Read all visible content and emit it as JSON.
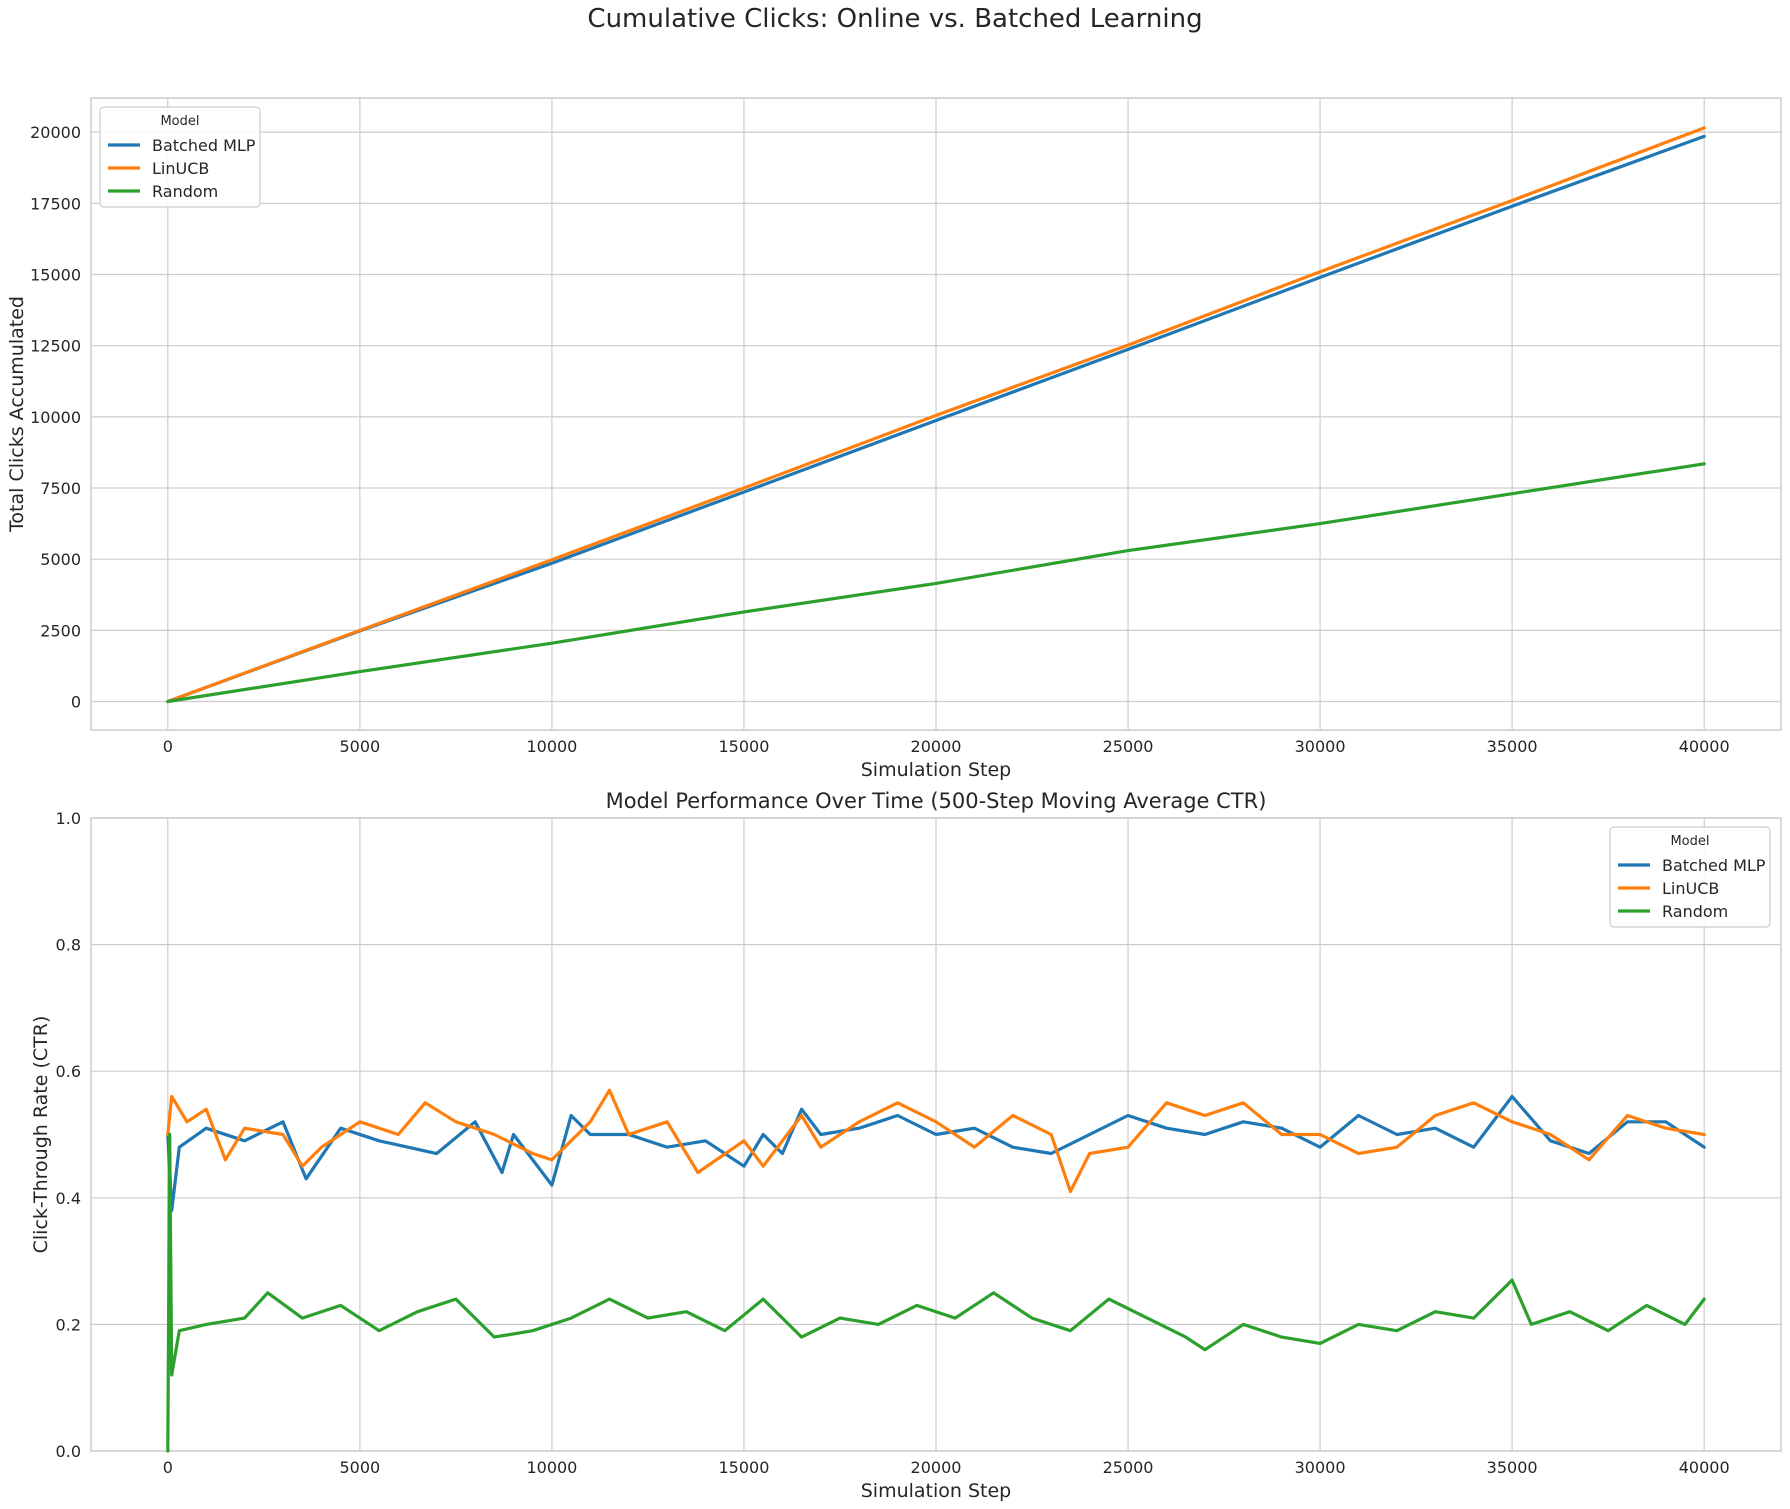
{
  "figure_title": "Cumulative Clicks: Online vs. Batched Learning",
  "colors": {
    "Batched MLP": "#1f77b4",
    "LinUCB": "#ff7f0e",
    "Random": "#2ca02c",
    "grid": "#cccccc",
    "axes_edge": "#cccccc"
  },
  "chart_data": [
    {
      "type": "line",
      "title": "",
      "xlabel": "Simulation Step",
      "ylabel": "Total Clicks Accumulated",
      "xlim": [
        -2000,
        42000
      ],
      "ylim": [
        -1000,
        21200
      ],
      "xticks": [
        0,
        5000,
        10000,
        15000,
        20000,
        25000,
        30000,
        35000,
        40000
      ],
      "yticks": [
        0,
        2500,
        5000,
        7500,
        10000,
        12500,
        15000,
        17500,
        20000
      ],
      "grid": true,
      "legend": {
        "title": "Model",
        "placement": "top-left",
        "entries": [
          "Batched MLP",
          "LinUCB",
          "Random"
        ]
      },
      "series": [
        {
          "name": "Batched MLP",
          "x": [
            0,
            5000,
            10000,
            15000,
            20000,
            25000,
            30000,
            35000,
            40000
          ],
          "values": [
            0,
            2480,
            4860,
            7360,
            9870,
            12370,
            14900,
            17400,
            19850
          ]
        },
        {
          "name": "LinUCB",
          "x": [
            0,
            5000,
            10000,
            15000,
            20000,
            25000,
            30000,
            35000,
            40000
          ],
          "values": [
            0,
            2500,
            4980,
            7500,
            10050,
            12520,
            15100,
            17600,
            20150
          ]
        },
        {
          "name": "Random",
          "x": [
            0,
            5000,
            10000,
            15000,
            20000,
            25000,
            30000,
            35000,
            40000
          ],
          "values": [
            0,
            1050,
            2050,
            3150,
            4150,
            5300,
            6250,
            7300,
            8350
          ]
        }
      ]
    },
    {
      "type": "line",
      "title": "Model Performance Over Time (500-Step Moving Average CTR)",
      "xlabel": "Simulation Step",
      "ylabel": "Click-Through Rate (CTR)",
      "xlim": [
        -2000,
        42000
      ],
      "ylim": [
        0.0,
        1.0
      ],
      "xticks": [
        0,
        5000,
        10000,
        15000,
        20000,
        25000,
        30000,
        35000,
        40000
      ],
      "yticks": [
        0.0,
        0.2,
        0.4,
        0.6,
        0.8,
        1.0
      ],
      "grid": true,
      "legend": {
        "title": "Model",
        "placement": "top-right",
        "entries": [
          "Batched MLP",
          "LinUCB",
          "Random"
        ]
      },
      "series": [
        {
          "name": "Batched MLP",
          "x": [
            0,
            100,
            300,
            1000,
            2000,
            3000,
            3600,
            4500,
            5500,
            7000,
            8000,
            8700,
            9000,
            10000,
            10500,
            11000,
            12000,
            13000,
            14000,
            15000,
            15500,
            16000,
            16500,
            17000,
            18000,
            19000,
            20000,
            21000,
            22000,
            23000,
            24000,
            25000,
            26000,
            27000,
            28000,
            29000,
            30000,
            31000,
            32000,
            33000,
            34000,
            35000,
            36000,
            37000,
            38000,
            39000,
            40000
          ],
          "values": [
            0.5,
            0.38,
            0.48,
            0.51,
            0.49,
            0.52,
            0.43,
            0.51,
            0.49,
            0.47,
            0.52,
            0.44,
            0.5,
            0.42,
            0.53,
            0.5,
            0.5,
            0.48,
            0.49,
            0.45,
            0.5,
            0.47,
            0.54,
            0.5,
            0.51,
            0.53,
            0.5,
            0.51,
            0.48,
            0.47,
            0.5,
            0.53,
            0.51,
            0.5,
            0.52,
            0.51,
            0.48,
            0.53,
            0.5,
            0.51,
            0.48,
            0.56,
            0.49,
            0.47,
            0.52,
            0.52,
            0.48
          ]
        },
        {
          "name": "LinUCB",
          "x": [
            0,
            100,
            500,
            1000,
            1500,
            2000,
            3000,
            3500,
            4000,
            5000,
            6000,
            6700,
            7500,
            8500,
            9500,
            10000,
            11000,
            11500,
            12000,
            13000,
            13800,
            15000,
            15500,
            16500,
            17000,
            18000,
            19000,
            20000,
            21000,
            22000,
            23000,
            23500,
            24000,
            25000,
            26000,
            27000,
            28000,
            29000,
            30000,
            31000,
            32000,
            33000,
            34000,
            35000,
            36000,
            37000,
            38000,
            39000,
            40000
          ],
          "values": [
            0.5,
            0.56,
            0.52,
            0.54,
            0.46,
            0.51,
            0.5,
            0.45,
            0.48,
            0.52,
            0.5,
            0.55,
            0.52,
            0.5,
            0.47,
            0.46,
            0.52,
            0.57,
            0.5,
            0.52,
            0.44,
            0.49,
            0.45,
            0.53,
            0.48,
            0.52,
            0.55,
            0.52,
            0.48,
            0.53,
            0.5,
            0.41,
            0.47,
            0.48,
            0.55,
            0.53,
            0.55,
            0.5,
            0.5,
            0.47,
            0.48,
            0.53,
            0.55,
            0.52,
            0.5,
            0.46,
            0.53,
            0.51,
            0.5
          ]
        },
        {
          "name": "Random",
          "x": [
            0,
            50,
            100,
            300,
            1000,
            2000,
            2600,
            3500,
            4500,
            5500,
            6500,
            7500,
            8500,
            9500,
            10500,
            11500,
            12500,
            13500,
            14500,
            15500,
            16500,
            17500,
            18500,
            19500,
            20500,
            21500,
            22500,
            23500,
            24500,
            25500,
            26500,
            27000,
            28000,
            29000,
            30000,
            31000,
            32000,
            33000,
            34000,
            35000,
            35500,
            36500,
            37500,
            38500,
            39500,
            40000
          ],
          "values": [
            0.0,
            0.5,
            0.12,
            0.19,
            0.2,
            0.21,
            0.25,
            0.21,
            0.23,
            0.19,
            0.22,
            0.24,
            0.18,
            0.19,
            0.21,
            0.24,
            0.21,
            0.22,
            0.19,
            0.24,
            0.18,
            0.21,
            0.2,
            0.23,
            0.21,
            0.25,
            0.21,
            0.19,
            0.24,
            0.21,
            0.18,
            0.16,
            0.2,
            0.18,
            0.17,
            0.2,
            0.19,
            0.22,
            0.21,
            0.27,
            0.2,
            0.22,
            0.19,
            0.23,
            0.2,
            0.24
          ]
        }
      ]
    }
  ]
}
